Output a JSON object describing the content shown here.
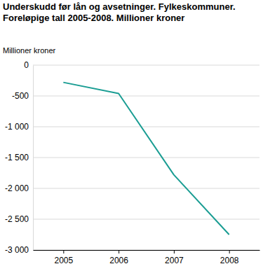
{
  "chart_data": {
    "type": "line",
    "title": "Underskudd før lån og avsetninger. Fylkeskommuner. Foreløpige tall 2005-2008. Millioner kroner",
    "y_label": "Millioner kroner",
    "categories": [
      "2005",
      "2006",
      "2007",
      "2008"
    ],
    "values": [
      -280,
      -460,
      -1780,
      -2750
    ],
    "color": "#1a9d93",
    "ylim": [
      -3000,
      0
    ],
    "yticks": [
      0,
      -500,
      {
        "value": -1000,
        "label": "-1 000"
      },
      {
        "value": -1500,
        "label": "-1 500"
      },
      {
        "value": -2000,
        "label": "-2 000"
      },
      {
        "value": -2500,
        "label": "-2 500"
      },
      {
        "value": -3000,
        "label": "-3 000"
      }
    ],
    "grid": true
  }
}
